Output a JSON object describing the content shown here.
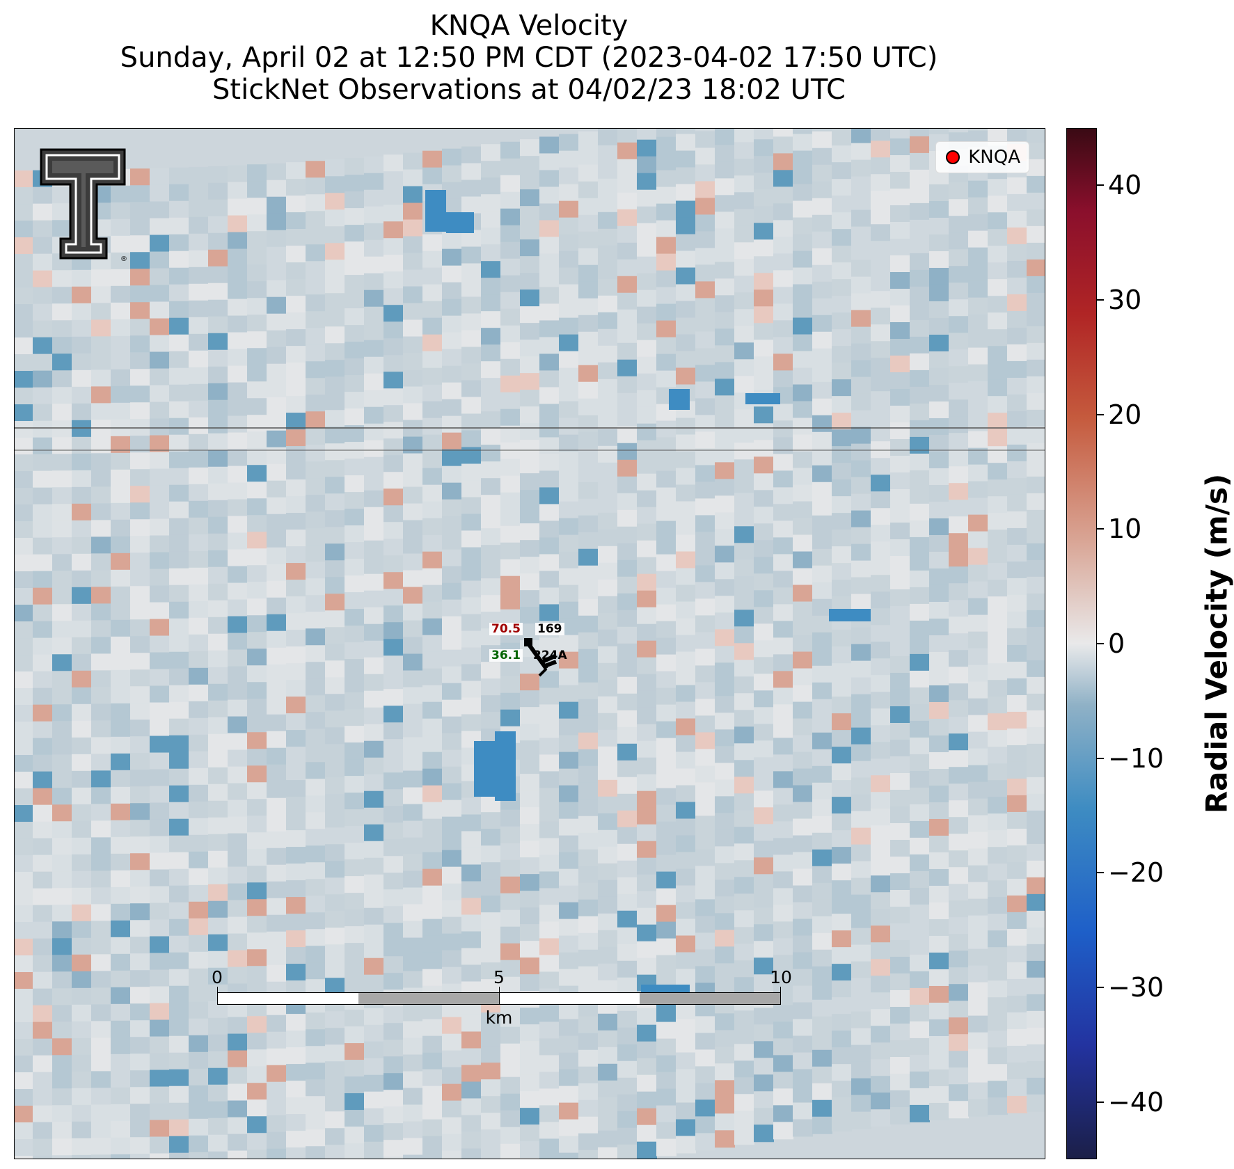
{
  "title": {
    "line1": "KNQA Velocity",
    "line2": "Sunday, April 02 at 12:50 PM CDT (2023-04-02 17:50 UTC)",
    "line3": "StickNet Observations at 04/02/23 18:02 UTC"
  },
  "legend": {
    "label": "KNQA",
    "marker_color": "#ff0000"
  },
  "logo": {
    "name": "texas-tech-double-t-logo",
    "trademark": "®"
  },
  "station": {
    "temperature": "70.5",
    "dewpoint": "36.1",
    "pressure_code": "169",
    "station_id": "224A",
    "temperature_color": "#a00000",
    "dewpoint_color": "#006400"
  },
  "scalebar": {
    "ticks": [
      "0",
      "5",
      "10"
    ],
    "unit": "km"
  },
  "colorbar": {
    "title": "Radial Velocity (m/s)",
    "range": [
      -45,
      45
    ],
    "ticks": [
      "40",
      "30",
      "20",
      "10",
      "0",
      "−10",
      "−20",
      "−30",
      "−40"
    ],
    "tick_values": [
      40,
      30,
      20,
      10,
      0,
      -10,
      -20,
      -30,
      -40
    ],
    "colormap": [
      "#1b1f48",
      "#2333a0",
      "#3e8cc2",
      "#e9e9ea",
      "#c55a3d",
      "#3a0a14"
    ]
  },
  "colors": {
    "background_field": "#cdd6dc",
    "inbound": "#3e8cc2",
    "outbound": "#d9a595"
  }
}
